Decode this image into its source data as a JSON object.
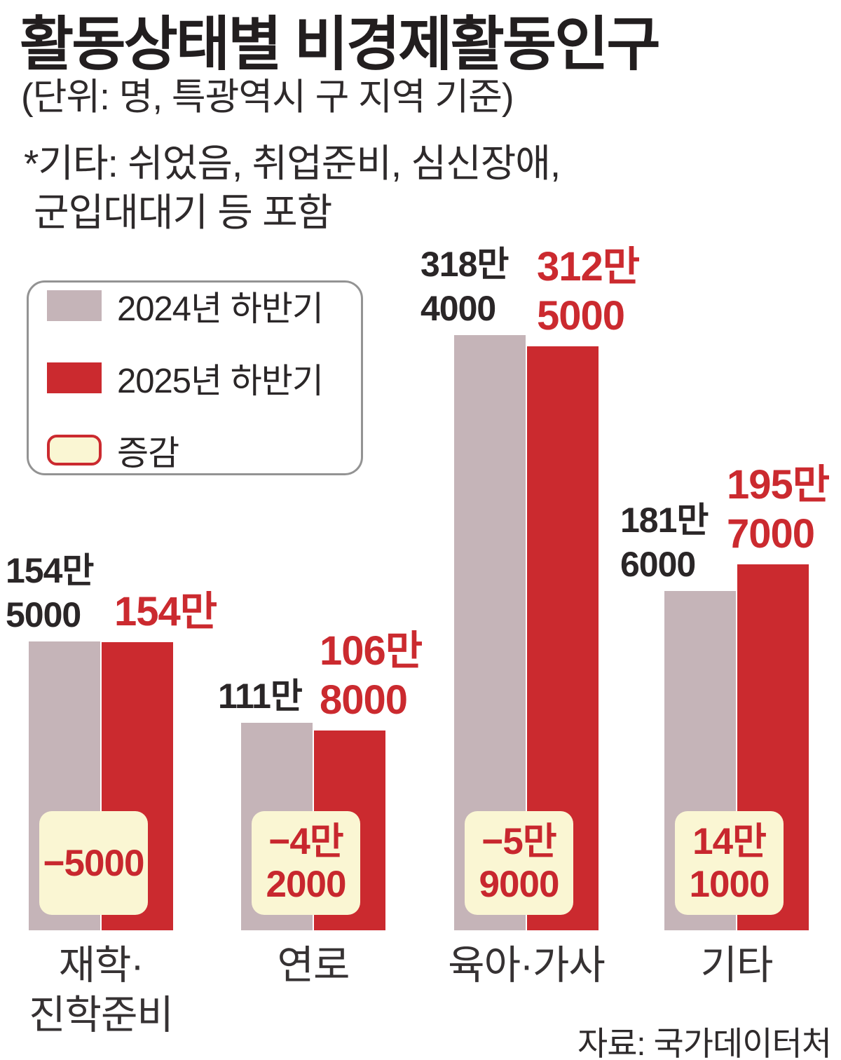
{
  "header": {
    "title": "활동상태별 비경제활동인구",
    "subtitle": "(단위: 명, 특광역시 구 지역 기준)",
    "footnote_line1": "*기타: 쉬었음, 취업준비, 심신장애,",
    "footnote_line2": "군입대대기 등 포함"
  },
  "legend": {
    "items": [
      {
        "label": "2024년 하반기",
        "swatch": "grey-bar"
      },
      {
        "label": "2025년 하반기",
        "swatch": "red-bar"
      },
      {
        "label": "증감",
        "swatch": "cream-badge"
      }
    ]
  },
  "source": "자료: 국가데이터처",
  "colors": {
    "bar_2024": "#c5b4b8",
    "bar_2025": "#cb2a2f",
    "change_fill": "#faf6d3",
    "accent_red": "#c8272e",
    "text_dark": "#2a2627"
  },
  "chart_data": {
    "type": "bar",
    "title": "활동상태별 비경제활동인구",
    "unit": "명",
    "region_note": "특광역시 구 지역 기준",
    "categories": [
      "재학·진학준비",
      "연로",
      "육아·가사",
      "기타"
    ],
    "category_display_lines": [
      [
        "재학·",
        "진학준비"
      ],
      [
        "연로"
      ],
      [
        "육아·가사"
      ],
      [
        "기타"
      ]
    ],
    "series": [
      {
        "name": "2024년 하반기",
        "values": [
          1545000,
          1110000,
          3184000,
          1816000
        ],
        "value_display_lines": [
          [
            "154만",
            "5000"
          ],
          [
            "111만"
          ],
          [
            "318만",
            "4000"
          ],
          [
            "181만",
            "6000"
          ]
        ]
      },
      {
        "name": "2025년 하반기",
        "values": [
          1540000,
          1068000,
          3125000,
          1957000
        ],
        "value_display_lines": [
          [
            "154만"
          ],
          [
            "106만",
            "8000"
          ],
          [
            "312만",
            "5000"
          ],
          [
            "195만",
            "7000"
          ]
        ]
      }
    ],
    "changes": {
      "name": "증감",
      "values": [
        -5000,
        -42000,
        -59000,
        141000
      ],
      "display_lines": [
        [
          "−5000"
        ],
        [
          "−4만",
          "2000"
        ],
        [
          "−5만",
          "9000"
        ],
        [
          "14만",
          "1000"
        ]
      ]
    },
    "ylim": [
      0,
      3400000
    ],
    "grid": false,
    "legend_position": "upper-left"
  }
}
